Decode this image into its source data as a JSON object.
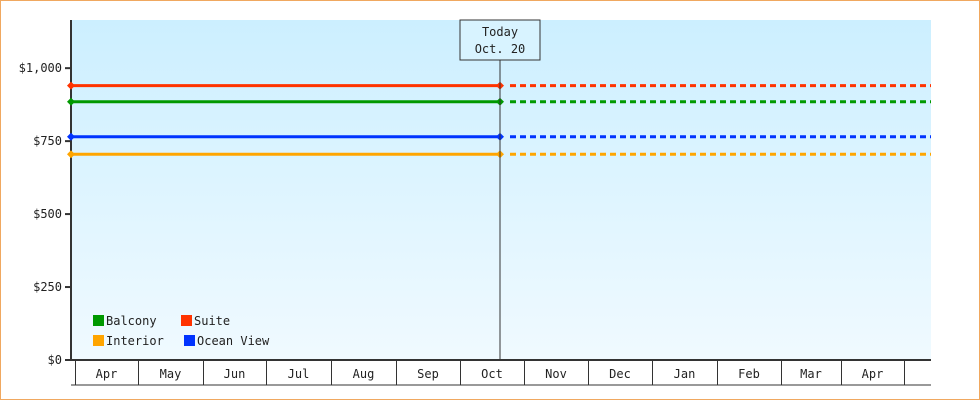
{
  "chart_data": {
    "type": "line",
    "ylim": [
      0,
      1165
    ],
    "yticks": [
      0,
      250,
      500,
      750,
      1000
    ],
    "ytick_labels": [
      "$0",
      "$250",
      "$500",
      "$750",
      "$1,000"
    ],
    "categories": [
      "Apr",
      "May",
      "Jun",
      "Jul",
      "Aug",
      "Sep",
      "Oct",
      "Nov",
      "Dec",
      "Jan",
      "Feb",
      "Mar",
      "Apr"
    ],
    "today": {
      "line1": "Today",
      "line2": "Oct. 20"
    },
    "series": [
      {
        "name": "Suite",
        "color": "#ff3300",
        "value": 940
      },
      {
        "name": "Balcony",
        "color": "#009900",
        "value": 885
      },
      {
        "name": "Ocean View",
        "color": "#0033ff",
        "value": 765
      },
      {
        "name": "Interior",
        "color": "#ffa500",
        "value": 705
      }
    ],
    "legend": [
      {
        "name": "Balcony",
        "color": "#009900"
      },
      {
        "name": "Suite",
        "color": "#ff3300"
      },
      {
        "name": "Interior",
        "color": "#ffa500"
      },
      {
        "name": "Ocean View",
        "color": "#0033ff"
      }
    ],
    "legend_position": "bottom-left",
    "grid": false
  }
}
